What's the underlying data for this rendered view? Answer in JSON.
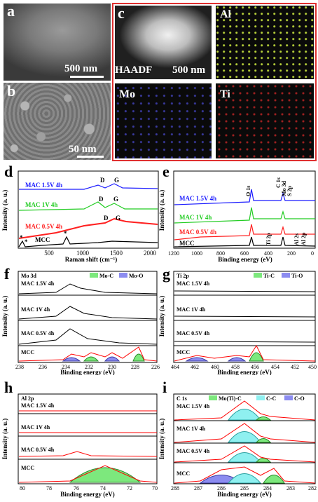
{
  "panels": {
    "a": {
      "label": "a",
      "scale": "500 nm"
    },
    "b": {
      "label": "b",
      "scale": "50 nm"
    },
    "c": {
      "label": "c",
      "haadf": "HAADF",
      "scale": "500 nm",
      "maps": [
        "Al",
        "Mo",
        "Ti"
      ]
    },
    "d": {
      "label": "d",
      "ylabel": "Intensity (a. u.)",
      "xlabel": "Raman shift (cm⁻¹)",
      "series": [
        "MAC 1.5V 4h",
        "MAC 1V 4h",
        "MAC 0.5V 4h",
        "MCC"
      ],
      "peaks": [
        "D",
        "G",
        "D",
        "G",
        "D",
        "G"
      ],
      "ticks": [
        "500",
        "1000",
        "1500",
        "2000"
      ],
      "stars": [
        "*",
        "*",
        "*"
      ]
    },
    "e": {
      "label": "e",
      "ylabel": "Intensity (a. u.)",
      "xlabel": "Binding energy (eV)",
      "series": [
        "MAC 1.5V 4h",
        "MAC 1V 4h",
        "MAC 0.5V 4h",
        "MCC"
      ],
      "peaks": [
        "O 1s",
        "C 1s",
        "Mo 3d",
        "S 2p",
        "Ti 2p",
        "Al 2s",
        "Al 2p"
      ],
      "ticks": [
        "1200",
        "1000",
        "800",
        "600",
        "400",
        "200",
        "0"
      ]
    },
    "f": {
      "label": "f",
      "title": "Mo 3d",
      "legend": [
        "Mo-C",
        "Mo-O"
      ],
      "ylabel": "Intensity (a. u.)",
      "xlabel": "Binding energy (eV)",
      "series": [
        "MAC 1.5V 4h",
        "MAC 1V 4h",
        "MAC 0.5V 4h",
        "MCC"
      ],
      "ticks": [
        "238",
        "236",
        "234",
        "232",
        "230",
        "228",
        "226"
      ]
    },
    "g": {
      "label": "g",
      "title": "Ti 2p",
      "legend": [
        "Ti-C",
        "Ti-O"
      ],
      "ylabel": "Intensity (a. u.)",
      "xlabel": "Binding energy (eV)",
      "series": [
        "MAC 1.5V 4h",
        "MAC 1V 4h",
        "MAC 0.5V 4h",
        "MCC"
      ],
      "ticks": [
        "464",
        "462",
        "460",
        "458",
        "456",
        "454",
        "452",
        "450"
      ]
    },
    "h": {
      "label": "h",
      "title": "Al 2p",
      "ylabel": "Intensity (a. u.)",
      "xlabel": "Binding energy (eV)",
      "series": [
        "MAC 1.5V 4h",
        "MAC 1V 4h",
        "MAC 0.5V 4h",
        "MCC"
      ],
      "ticks": [
        "80",
        "78",
        "76",
        "74",
        "72",
        "70"
      ]
    },
    "i": {
      "label": "i",
      "title": "C 1s",
      "legend": [
        "Mo(Ti)-C",
        "C-C",
        "C-O"
      ],
      "ylabel": "Intensity (a. u.)",
      "xlabel": "Binding energy (eV)",
      "series": [
        "MAC 1.5V 4h",
        "MAC 1V 4h",
        "MAC 0.5V 4h",
        "MCC"
      ],
      "ticks": [
        "288",
        "287",
        "286",
        "285",
        "284",
        "283",
        "282"
      ]
    }
  },
  "colors": {
    "frame": "#e03030",
    "blue": "#1a1aff",
    "green": "#22cc22",
    "red": "#ff2020",
    "black": "#000000",
    "fit": "#ff0000",
    "legend_green": "#7de87d",
    "legend_blue": "#8c8cf0",
    "legend_cyan": "#8ff0f0"
  }
}
